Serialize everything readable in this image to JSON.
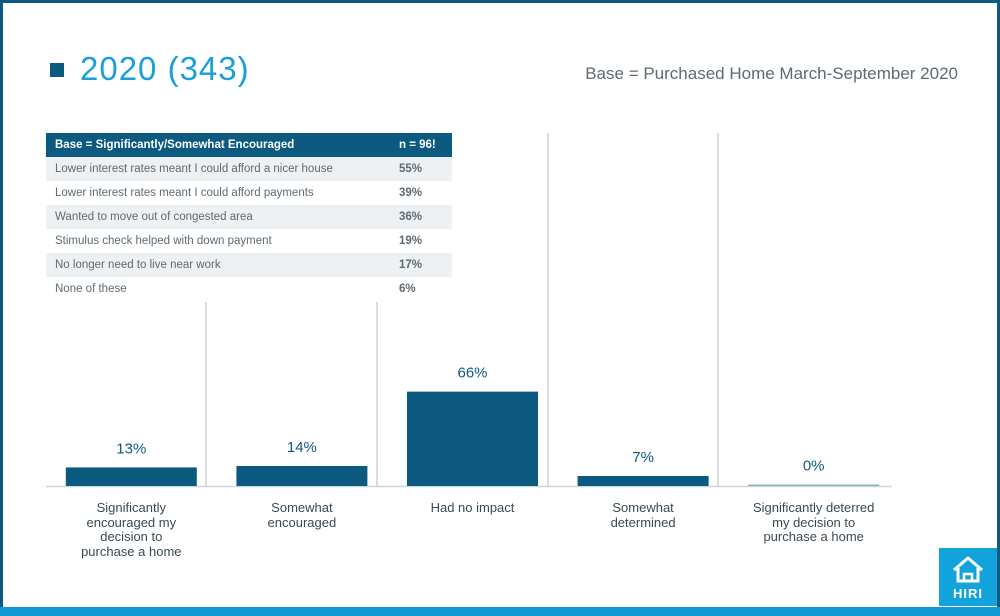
{
  "header": {
    "legend_label": "2020 (343)",
    "base_note": "Base = Purchased Home March-September 2020"
  },
  "table": {
    "header_label": "Base = Significantly/Somewhat Encouraged",
    "header_n": "n = 96!",
    "rows": [
      {
        "label": "Lower interest rates meant I could afford a nicer house",
        "value": "55%"
      },
      {
        "label": "Lower interest rates meant I could afford payments",
        "value": "39%"
      },
      {
        "label": "Wanted to move out of congested area",
        "value": "36%"
      },
      {
        "label": "Stimulus check helped with down payment",
        "value": "19%"
      },
      {
        "label": "No longer need to live near work",
        "value": "17%"
      },
      {
        "label": "None of these",
        "value": "6%"
      }
    ]
  },
  "chart_data": {
    "type": "bar",
    "categories": [
      "Significantly encouraged my decision to purchase a home",
      "Somewhat encouraged",
      "Had no impact",
      "Somewhat determined",
      "Significantly deterred my decision to purchase a home"
    ],
    "values": [
      13,
      14,
      66,
      7,
      0
    ],
    "value_labels": [
      "13%",
      "14%",
      "66%",
      "7%",
      "0%"
    ],
    "series": [
      {
        "name": "2020 (343)",
        "values": [
          13,
          14,
          66,
          7,
          0
        ]
      }
    ],
    "ylim": [
      0,
      100
    ],
    "grid": false,
    "colors": {
      "bar": "#0d5a80",
      "label": "#0d5a80"
    }
  },
  "category_label_lines": [
    [
      "Significantly",
      "encouraged my",
      "decision to",
      "purchase a home"
    ],
    [
      "Somewhat",
      "encouraged"
    ],
    [
      "Had no impact"
    ],
    [
      "Somewhat",
      "determined"
    ],
    [
      "Significantly deterred",
      "my decision to",
      "purchase a home"
    ]
  ],
  "logo": {
    "text": "HIRI",
    "icon": "house-icon"
  },
  "colors": {
    "accent": "#1a9fd9",
    "brand": "#0d5a80",
    "logo_bg": "#12a3dd"
  }
}
